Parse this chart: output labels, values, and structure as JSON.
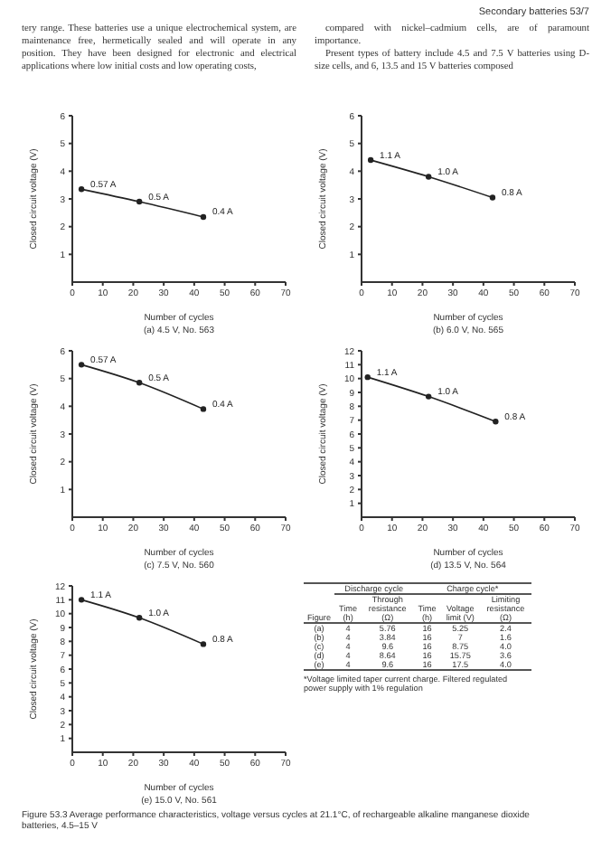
{
  "chart_data": [
    {
      "type": "other",
      "title": "Secondary batteries 53/7",
      "annotations": [
        "tery range. These batteries use a unique electrochemical system, are maintenance free, hermetically sealed and will operate in any position. They have been designed for electronic and electrical applications where low initial costs and low operating costs,",
        "compared with nickel–cadmium cells, are of paramount importance.",
        "Present types of battery include 4.5 and 7.5 V batteries using D-size cells, and 6, 13.5 and 15 V batteries composed"
      ]
    },
    {
      "type": "line",
      "subtitle": "(a) 4.5 V, No. 563",
      "xlabel": "Number of cycles",
      "ylabel": "Closed circuit voltage (V)",
      "x": [
        3,
        22,
        43
      ],
      "values": [
        3.35,
        2.9,
        2.35
      ],
      "color": "#222222",
      "marker": "circle",
      "xlim": [
        0,
        70
      ],
      "xticks": [
        0,
        10,
        20,
        30,
        40,
        50,
        60,
        70
      ],
      "ylim": [
        0,
        6
      ],
      "yticks": [
        1,
        2,
        3,
        4,
        5,
        6
      ],
      "annotations": [
        {
          "text": "0.57 A",
          "x": 3,
          "y": 3.35
        },
        {
          "text": "0.5 A",
          "x": 22,
          "y": 2.9
        },
        {
          "text": "0.4 A",
          "x": 43,
          "y": 2.35
        }
      ]
    },
    {
      "type": "line",
      "subtitle": "(b) 6.0 V, No. 565",
      "xlabel": "Number of cycles",
      "ylabel": "Closed circuit voltage (V)",
      "x": [
        3,
        22,
        43
      ],
      "values": [
        4.4,
        3.8,
        3.05
      ],
      "color": "#222222",
      "marker": "circle",
      "xlim": [
        0,
        70
      ],
      "xticks": [
        0,
        10,
        20,
        30,
        40,
        50,
        60,
        70
      ],
      "ylim": [
        0,
        6
      ],
      "yticks": [
        1,
        2,
        3,
        4,
        5,
        6
      ],
      "annotations": [
        {
          "text": "1.1 A",
          "x": 3,
          "y": 4.4
        },
        {
          "text": "1.0 A",
          "x": 22,
          "y": 3.8
        },
        {
          "text": "0.8 A",
          "x": 43,
          "y": 3.05
        }
      ]
    },
    {
      "type": "line",
      "subtitle": "(c) 7.5 V, No. 560",
      "xlabel": "Number of cycles",
      "ylabel": "Closed circuit voltage (V)",
      "x": [
        3,
        22,
        43
      ],
      "values": [
        5.5,
        4.85,
        3.9
      ],
      "color": "#222222",
      "marker": "circle",
      "xlim": [
        0,
        70
      ],
      "xticks": [
        0,
        10,
        20,
        30,
        40,
        50,
        60,
        70
      ],
      "ylim": [
        0,
        6
      ],
      "yticks": [
        1,
        2,
        3,
        4,
        5,
        6
      ],
      "annotations": [
        {
          "text": "0.57 A",
          "x": 3,
          "y": 5.5
        },
        {
          "text": "0.5 A",
          "x": 22,
          "y": 4.85
        },
        {
          "text": "0.4 A",
          "x": 43,
          "y": 3.9
        }
      ]
    },
    {
      "type": "line",
      "subtitle": "(d) 13.5 V, No. 564",
      "xlabel": "Number of cycles",
      "ylabel": "Closed circuit voltage (V)",
      "x": [
        2,
        22,
        44
      ],
      "values": [
        10.1,
        8.7,
        6.9
      ],
      "color": "#222222",
      "marker": "circle",
      "xlim": [
        0,
        70
      ],
      "xticks": [
        0,
        10,
        20,
        30,
        40,
        50,
        60,
        70
      ],
      "ylim": [
        0,
        12
      ],
      "yticks": [
        1,
        2,
        3,
        4,
        5,
        6,
        7,
        8,
        9,
        10,
        11,
        12
      ],
      "annotations": [
        {
          "text": "1.1 A",
          "x": 2,
          "y": 10.1
        },
        {
          "text": "1.0 A",
          "x": 22,
          "y": 8.7
        },
        {
          "text": "0.8 A",
          "x": 44,
          "y": 6.9
        }
      ]
    },
    {
      "type": "line",
      "subtitle": "(e) 15.0 V, No. 561",
      "xlabel": "Number of cycles",
      "ylabel": "Closed circuit voltage (V)",
      "x": [
        3,
        22,
        43
      ],
      "values": [
        11.0,
        9.7,
        7.8
      ],
      "color": "#222222",
      "marker": "circle",
      "xlim": [
        0,
        70
      ],
      "xticks": [
        0,
        10,
        20,
        30,
        40,
        50,
        60,
        70
      ],
      "ylim": [
        0,
        12
      ],
      "yticks": [
        1,
        2,
        3,
        4,
        5,
        6,
        7,
        8,
        9,
        10,
        11,
        12
      ],
      "annotations": [
        {
          "text": "1.1 A",
          "x": 3,
          "y": 11.0
        },
        {
          "text": "1.0 A",
          "x": 22,
          "y": 9.7
        },
        {
          "text": "0.8 A",
          "x": 43,
          "y": 7.8
        }
      ]
    },
    {
      "type": "other",
      "categories": [
        "Figure",
        "Time (h)",
        "Through resistance (Ω)",
        "Time (h)",
        "Voltage limit (V)",
        "Limiting resistance (Ω)"
      ],
      "cell_labels": [
        [
          "(a)",
          "4",
          "5.76",
          "16",
          "5.25",
          "2.4"
        ],
        [
          "(b)",
          "4",
          "3.84",
          "16",
          "7",
          "1.6"
        ],
        [
          "(c)",
          "4",
          "9.6",
          "16",
          "8.75",
          "4.0"
        ],
        [
          "(d)",
          "4",
          "8.64",
          "16",
          "15.75",
          "3.6"
        ],
        [
          "(e)",
          "4",
          "9.6",
          "16",
          "17.5",
          "4.0"
        ]
      ],
      "annotations": [
        "Discharge cycle",
        "Charge cycle*",
        "*Voltage limited taper current charge. Filtered regulated power supply with 1% regulation",
        "Figure 53.3 Average performance characteristics, voltage versus cycles at 21.1°C, of rechargeable alkaline manganese dioxide batteries, 4.5–15 V"
      ]
    }
  ]
}
